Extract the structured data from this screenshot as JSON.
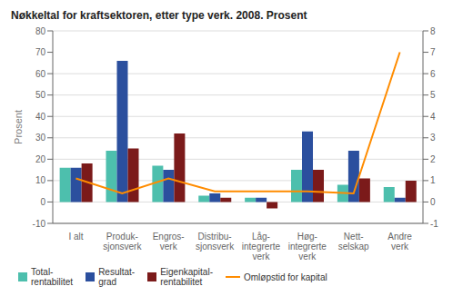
{
  "chart_data": {
    "type": "bar",
    "title": "Nøkkeltal for kraftsektoren, etter type verk. 2008. Prosent",
    "ylabel": "Prosent",
    "categories": [
      "I alt",
      "Produk-\nsjonsverk",
      "Engros-\nverk",
      "Distribu-\nsjonsverk",
      "Låg-\nintegrerte\nverk",
      "Høg-\nintegrerte\nverk",
      "Nett-\nselskap",
      "Andre\nverk"
    ],
    "series": [
      {
        "name": "Total-\nrentabilitet",
        "type": "bar",
        "color": "#4dbfad",
        "values": [
          16,
          24,
          17,
          3,
          2,
          15,
          8,
          7
        ]
      },
      {
        "name": "Resultat-\ngrad",
        "type": "bar",
        "color": "#2b4f9e",
        "values": [
          16,
          66,
          15,
          4,
          2,
          33,
          24,
          2
        ]
      },
      {
        "name": "Eigenkapital-\nrentabilitet",
        "type": "bar",
        "color": "#7b1a1a",
        "values": [
          18,
          25,
          32,
          2,
          -3,
          15,
          11,
          10
        ]
      },
      {
        "name": "Omløpstid for kapital",
        "type": "line",
        "axis": "y2",
        "color": "#ff8c00",
        "values": [
          1.1,
          0.4,
          1.1,
          0.5,
          0.5,
          0.5,
          0.4,
          7.0
        ]
      }
    ],
    "ylim": [
      -10,
      80
    ],
    "yticks": [
      -10,
      0,
      10,
      20,
      30,
      40,
      50,
      60,
      70,
      80
    ],
    "y2lim": [
      -1,
      8
    ],
    "y2ticks": [
      -1,
      0,
      1,
      2,
      3,
      4,
      5,
      6,
      7,
      8
    ],
    "grid": true,
    "legend": "lower left"
  }
}
